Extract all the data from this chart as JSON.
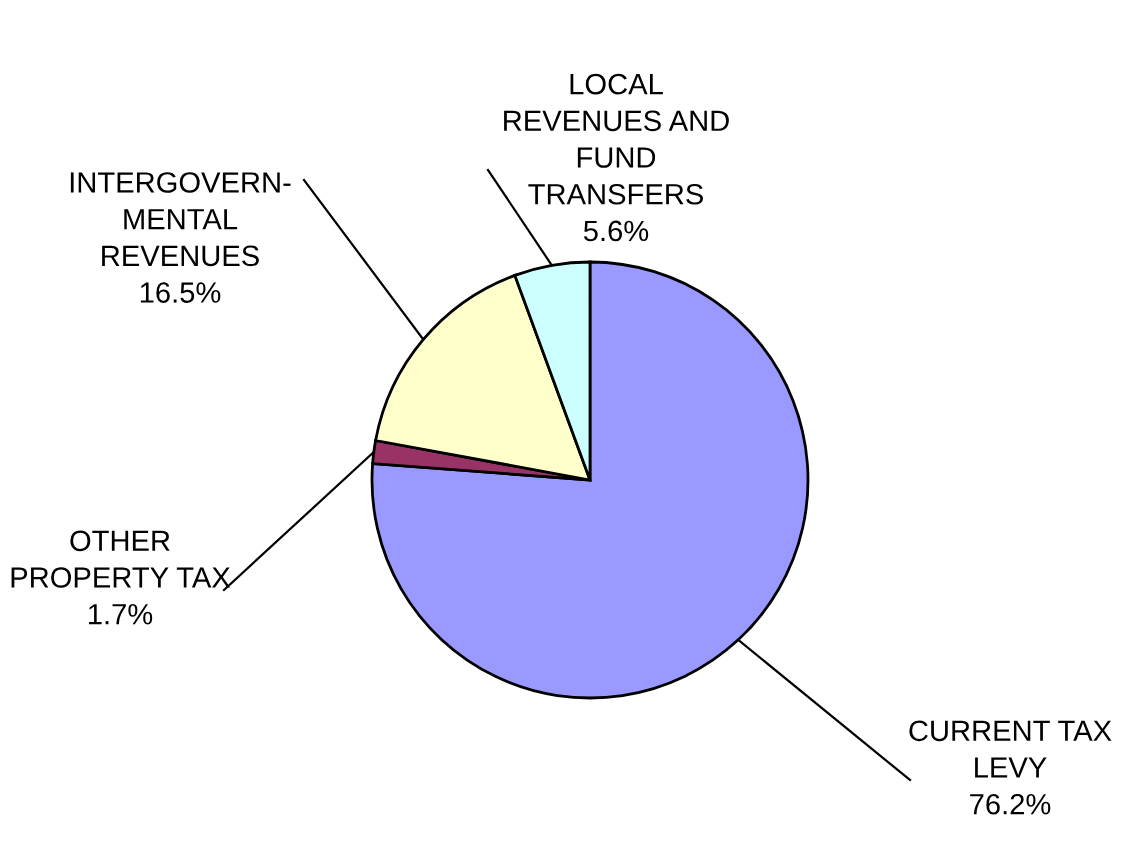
{
  "chart_data": {
    "type": "pie",
    "categories": [
      "CURRENT TAX\nLEVY",
      "OTHER\nPROPERTY TAX",
      "INTERGOVERN-\nMENTAL\nREVENUES",
      "LOCAL\nREVENUES AND\nFUND\nTRANSFERS"
    ],
    "values": [
      76.2,
      1.7,
      16.5,
      5.6
    ],
    "value_labels": [
      "76.2%",
      "1.7%",
      "16.5%",
      "5.6%"
    ],
    "colors": [
      "#9999ff",
      "#993366",
      "#ffffcc",
      "#ccffff"
    ]
  }
}
